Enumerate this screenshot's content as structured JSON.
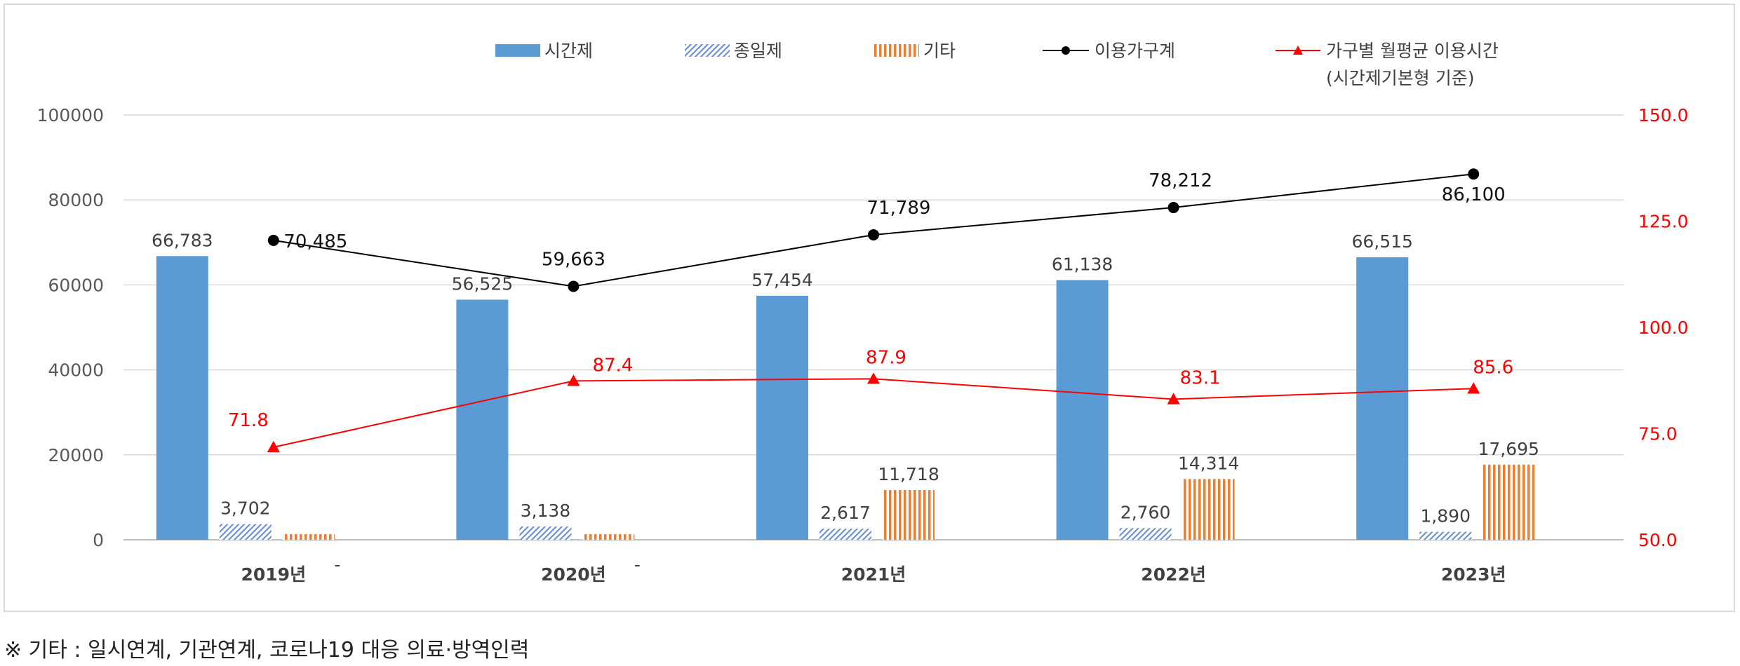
{
  "chart_data": {
    "type": "bar",
    "categories": [
      "2019년",
      "2020년",
      "2021년",
      "2022년",
      "2023년"
    ],
    "series": [
      {
        "name": "시간제",
        "kind": "bar",
        "axis": "left",
        "values": [
          66783,
          56525,
          57454,
          61138,
          66515
        ],
        "labels": [
          "66,783",
          "56,525",
          "57,454",
          "61,138",
          "66,515"
        ]
      },
      {
        "name": "종일제",
        "kind": "bar",
        "axis": "left",
        "values": [
          3702,
          3138,
          2617,
          2760,
          1890
        ],
        "labels": [
          "3,702",
          "3,138",
          "2,617",
          "2,760",
          "1,890"
        ]
      },
      {
        "name": "기타",
        "kind": "bar",
        "axis": "left",
        "values": [
          0,
          0,
          11718,
          14314,
          17695
        ],
        "labels": [
          "-",
          "-",
          "11,718",
          "14,314",
          "17,695"
        ]
      },
      {
        "name": "이용가구계",
        "kind": "line",
        "axis": "left",
        "values": [
          70485,
          59663,
          71789,
          78212,
          86100
        ],
        "labels": [
          "70,485",
          "59,663",
          "71,789",
          "78,212",
          "86,100"
        ]
      },
      {
        "name": "가구별 월평균 이용시간",
        "name_line2": "(시간제기본형 기준)",
        "kind": "line",
        "axis": "right",
        "values": [
          71.8,
          87.4,
          87.9,
          83.1,
          85.6
        ],
        "labels": [
          "71.8",
          "87.4",
          "87.9",
          "83.1",
          "85.6"
        ]
      }
    ],
    "left_axis": {
      "range": [
        0,
        100000
      ],
      "ticks": [
        "0",
        "20000",
        "40000",
        "60000",
        "80000",
        "100000"
      ]
    },
    "right_axis": {
      "range": [
        50,
        150
      ],
      "ticks": [
        "50.0",
        "75.0",
        "100.0",
        "125.0",
        "150.0"
      ]
    },
    "legend_position": "top",
    "grid": true
  },
  "colors": {
    "bar_hourly": "#5b9bd5",
    "bar_fullday": "#8eaadb",
    "bar_other": "#ed7d31",
    "line_households": "#000000",
    "line_hours": "#ff0000",
    "grid": "#d9d9d9",
    "axis_text": "#595959",
    "right_axis_text": "#ff0000"
  },
  "footnote": "※ 기타 : 일시연계, 기관연계, 코로나19 대응 의료·방역인력"
}
